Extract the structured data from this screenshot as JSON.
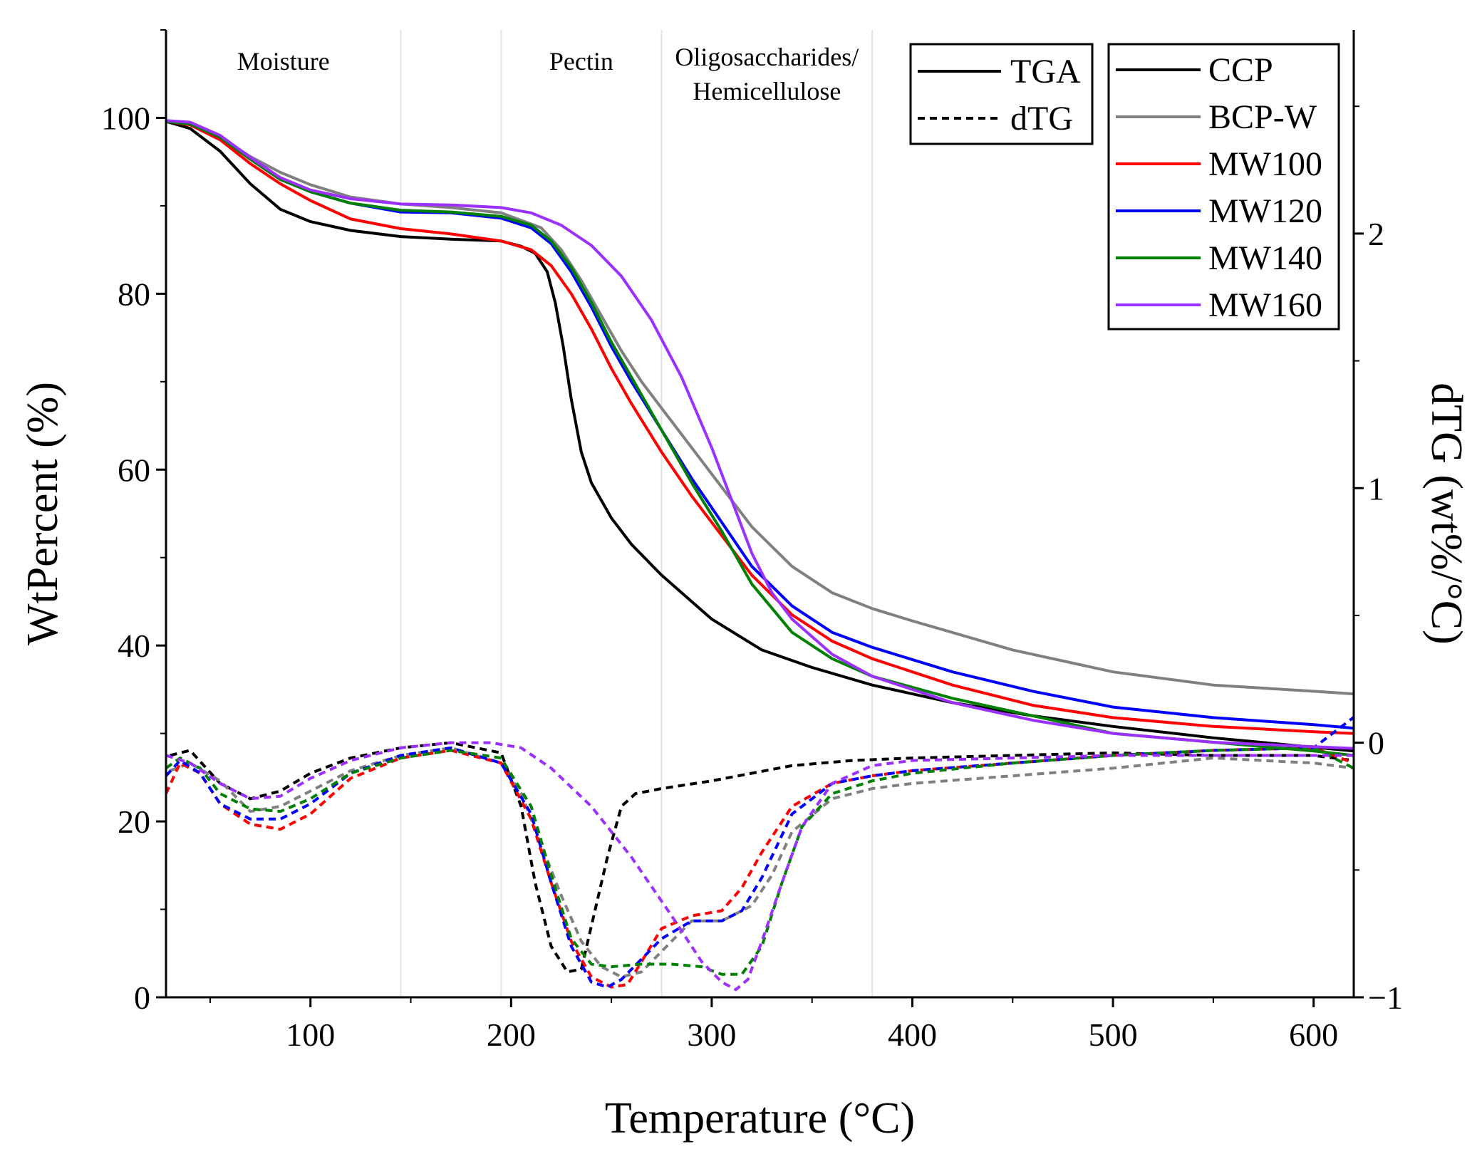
{
  "chart_data": {
    "type": "line",
    "xlabel": "Temperature (°C)",
    "ylabel": "WtPercent (%)",
    "y2label": "dTG (wt%/°C)",
    "xlim": [
      28,
      620
    ],
    "ylim": [
      0,
      110
    ],
    "y2lim": [
      -1,
      2.8
    ],
    "x_ticks": [
      100,
      200,
      300,
      400,
      500,
      600
    ],
    "y_ticks": [
      0,
      20,
      40,
      60,
      80,
      100
    ],
    "y2_ticks": [
      -1,
      0,
      1,
      2
    ],
    "x_tick_labels": [
      "100",
      "200",
      "300",
      "400",
      "500",
      "600"
    ],
    "y_tick_labels": [
      "0",
      "20",
      "40",
      "60",
      "80",
      "100"
    ],
    "y2_tick_labels": [
      "−1",
      "0",
      "1",
      "2"
    ],
    "regions": [
      {
        "label": "Moisture",
        "x_start": 28,
        "x_end": 145
      },
      {
        "label": "Pectin",
        "x_start": 195,
        "x_end": 275
      },
      {
        "label": "Oligosaccharides/",
        "label2": "Hemicellulose",
        "x_start": 275,
        "x_end": 380
      }
    ],
    "style_legend": [
      {
        "label": "TGA",
        "dash": "solid"
      },
      {
        "label": "dTG",
        "dash": "dashed"
      }
    ],
    "series": [
      {
        "name": "CCP",
        "color": "#000000",
        "tga": {
          "x": [
            28,
            40,
            55,
            70,
            85,
            100,
            120,
            145,
            170,
            195,
            205,
            212,
            218,
            222,
            226,
            230,
            235,
            240,
            250,
            260,
            275,
            300,
            325,
            350,
            380,
            420,
            460,
            500,
            550,
            620
          ],
          "y": [
            99.6,
            98.8,
            96.2,
            92.5,
            89.6,
            88.2,
            87.2,
            86.5,
            86.2,
            86.0,
            85.4,
            84.6,
            82.5,
            79.0,
            74.0,
            68.0,
            62.0,
            58.5,
            54.5,
            51.5,
            48.0,
            43.0,
            39.5,
            37.5,
            35.5,
            33.5,
            32.0,
            30.8,
            29.5,
            28.0
          ]
        },
        "dtg": {
          "x": [
            30,
            40,
            55,
            70,
            85,
            100,
            120,
            145,
            170,
            195,
            205,
            212,
            220,
            228,
            235,
            240,
            248,
            255,
            262,
            275,
            300,
            320,
            340,
            370,
            400,
            450,
            500,
            550,
            600,
            620
          ],
          "y": [
            -0.05,
            -0.03,
            -0.16,
            -0.22,
            -0.19,
            -0.12,
            -0.06,
            -0.02,
            0.0,
            -0.04,
            -0.25,
            -0.55,
            -0.8,
            -0.9,
            -0.89,
            -0.72,
            -0.45,
            -0.25,
            -0.2,
            -0.18,
            -0.15,
            -0.12,
            -0.09,
            -0.07,
            -0.06,
            -0.05,
            -0.04,
            -0.05,
            -0.05,
            -0.07
          ]
        }
      },
      {
        "name": "BCP-W",
        "color": "#808080",
        "tga": {
          "x": [
            28,
            40,
            55,
            70,
            85,
            100,
            120,
            145,
            170,
            195,
            215,
            225,
            235,
            245,
            255,
            265,
            275,
            290,
            305,
            320,
            340,
            360,
            380,
            400,
            450,
            500,
            550,
            600,
            620
          ],
          "y": [
            99.6,
            99.3,
            97.8,
            95.6,
            93.8,
            92.4,
            91.0,
            90.2,
            89.8,
            89.2,
            87.5,
            85.0,
            81.5,
            77.5,
            73.5,
            70.0,
            67.0,
            62.5,
            58.0,
            53.5,
            49.0,
            46.0,
            44.2,
            42.8,
            39.5,
            37.0,
            35.5,
            34.8,
            34.5
          ]
        },
        "dtg": {
          "x": [
            30,
            40,
            55,
            70,
            85,
            100,
            120,
            145,
            170,
            195,
            205,
            215,
            225,
            235,
            245,
            255,
            265,
            275,
            290,
            305,
            320,
            330,
            340,
            360,
            380,
            400,
            450,
            500,
            550,
            600,
            620
          ],
          "y": [
            -0.11,
            -0.08,
            -0.15,
            -0.27,
            -0.25,
            -0.19,
            -0.11,
            -0.05,
            -0.02,
            -0.08,
            -0.2,
            -0.4,
            -0.6,
            -0.78,
            -0.88,
            -0.92,
            -0.9,
            -0.82,
            -0.7,
            -0.7,
            -0.64,
            -0.52,
            -0.35,
            -0.22,
            -0.18,
            -0.16,
            -0.13,
            -0.1,
            -0.06,
            -0.08,
            -0.1
          ]
        }
      },
      {
        "name": "MW100",
        "color": "#ff0000",
        "tga": {
          "x": [
            28,
            40,
            55,
            70,
            85,
            100,
            120,
            145,
            170,
            195,
            210,
            220,
            230,
            240,
            250,
            260,
            275,
            290,
            305,
            320,
            340,
            360,
            380,
            420,
            460,
            500,
            550,
            600,
            620
          ],
          "y": [
            99.6,
            99.2,
            97.5,
            94.8,
            92.5,
            90.6,
            88.5,
            87.4,
            86.8,
            86.0,
            85.0,
            83.2,
            80.0,
            76.0,
            71.5,
            67.5,
            62.0,
            57.0,
            52.5,
            48.0,
            43.5,
            40.5,
            38.5,
            35.5,
            33.2,
            31.8,
            30.8,
            30.2,
            30.0
          ]
        },
        "dtg": {
          "x": [
            28,
            35,
            45,
            55,
            70,
            85,
            100,
            120,
            145,
            170,
            195,
            210,
            220,
            230,
            240,
            250,
            258,
            265,
            275,
            290,
            305,
            315,
            325,
            340,
            360,
            380,
            400,
            450,
            500,
            550,
            600,
            620
          ],
          "y": [
            -0.2,
            -0.08,
            -0.12,
            -0.24,
            -0.32,
            -0.34,
            -0.28,
            -0.14,
            -0.06,
            -0.03,
            -0.08,
            -0.3,
            -0.55,
            -0.78,
            -0.92,
            -0.96,
            -0.95,
            -0.86,
            -0.73,
            -0.68,
            -0.66,
            -0.57,
            -0.43,
            -0.25,
            -0.16,
            -0.13,
            -0.11,
            -0.08,
            -0.05,
            -0.03,
            -0.02,
            -0.08
          ]
        }
      },
      {
        "name": "MW120",
        "color": "#0000ff",
        "tga": {
          "x": [
            28,
            40,
            55,
            70,
            85,
            100,
            120,
            145,
            170,
            195,
            210,
            220,
            230,
            240,
            250,
            260,
            275,
            290,
            305,
            320,
            340,
            360,
            380,
            420,
            460,
            500,
            550,
            600,
            620
          ],
          "y": [
            99.6,
            99.3,
            97.8,
            95.3,
            93.0,
            91.6,
            90.3,
            89.3,
            89.2,
            88.6,
            87.5,
            85.7,
            82.5,
            78.5,
            74.0,
            70.0,
            64.5,
            59.0,
            54.0,
            49.0,
            44.5,
            41.5,
            39.8,
            37.0,
            34.8,
            33.0,
            31.8,
            31.0,
            30.6
          ]
        },
        "dtg": {
          "x": [
            28,
            35,
            45,
            55,
            70,
            85,
            100,
            120,
            145,
            170,
            195,
            210,
            220,
            230,
            240,
            248,
            255,
            265,
            275,
            290,
            305,
            315,
            325,
            340,
            360,
            380,
            400,
            450,
            500,
            550,
            600,
            620
          ],
          "y": [
            -0.13,
            -0.07,
            -0.12,
            -0.24,
            -0.3,
            -0.3,
            -0.24,
            -0.12,
            -0.05,
            -0.02,
            -0.08,
            -0.28,
            -0.55,
            -0.8,
            -0.94,
            -0.96,
            -0.93,
            -0.85,
            -0.77,
            -0.7,
            -0.7,
            -0.66,
            -0.53,
            -0.28,
            -0.16,
            -0.13,
            -0.11,
            -0.08,
            -0.05,
            -0.03,
            -0.02,
            0.1
          ]
        }
      },
      {
        "name": "MW140",
        "color": "#008000",
        "tga": {
          "x": [
            28,
            40,
            55,
            70,
            85,
            100,
            120,
            145,
            170,
            195,
            210,
            220,
            230,
            240,
            250,
            260,
            275,
            290,
            305,
            320,
            340,
            360,
            380,
            420,
            460,
            500,
            550,
            600,
            620
          ],
          "y": [
            99.6,
            99.3,
            97.8,
            95.3,
            93.0,
            91.6,
            90.3,
            89.5,
            89.3,
            88.8,
            87.8,
            86.0,
            83.0,
            79.0,
            74.5,
            70.5,
            64.5,
            58.5,
            53.0,
            47.0,
            41.5,
            38.5,
            36.5,
            34.0,
            32.0,
            30.0,
            29.0,
            28.0,
            27.5
          ]
        },
        "dtg": {
          "x": [
            28,
            35,
            45,
            55,
            70,
            85,
            100,
            120,
            145,
            170,
            195,
            210,
            220,
            230,
            240,
            250,
            265,
            280,
            295,
            305,
            315,
            325,
            335,
            345,
            360,
            380,
            400,
            450,
            500,
            550,
            600,
            620
          ],
          "y": [
            -0.1,
            -0.06,
            -0.1,
            -0.2,
            -0.26,
            -0.27,
            -0.22,
            -0.12,
            -0.06,
            -0.03,
            -0.06,
            -0.25,
            -0.52,
            -0.77,
            -0.87,
            -0.88,
            -0.87,
            -0.87,
            -0.88,
            -0.91,
            -0.91,
            -0.8,
            -0.55,
            -0.33,
            -0.2,
            -0.15,
            -0.12,
            -0.08,
            -0.05,
            -0.03,
            -0.02,
            -0.1
          ]
        }
      },
      {
        "name": "MW160",
        "color": "#9b30ff",
        "tga": {
          "x": [
            28,
            40,
            55,
            70,
            85,
            100,
            120,
            145,
            170,
            195,
            210,
            225,
            240,
            255,
            270,
            285,
            300,
            310,
            320,
            330,
            340,
            360,
            380,
            420,
            460,
            500,
            550,
            600,
            620
          ],
          "y": [
            99.7,
            99.5,
            98.0,
            95.5,
            93.2,
            91.8,
            90.8,
            90.2,
            90.1,
            89.8,
            89.2,
            87.8,
            85.5,
            82.0,
            77.0,
            70.5,
            62.5,
            56.5,
            50.5,
            46.0,
            43.0,
            39.0,
            36.5,
            33.5,
            31.5,
            30.0,
            29.0,
            28.5,
            28.3
          ]
        },
        "dtg": {
          "x": [
            28,
            40,
            55,
            70,
            85,
            100,
            120,
            145,
            170,
            190,
            205,
            220,
            240,
            260,
            280,
            295,
            305,
            312,
            318,
            325,
            335,
            345,
            360,
            380,
            400,
            450,
            500,
            550,
            600,
            620
          ],
          "y": [
            -0.05,
            -0.08,
            -0.16,
            -0.22,
            -0.21,
            -0.14,
            -0.07,
            -0.02,
            0.0,
            0.0,
            -0.02,
            -0.1,
            -0.25,
            -0.45,
            -0.68,
            -0.86,
            -0.94,
            -0.97,
            -0.93,
            -0.78,
            -0.55,
            -0.33,
            -0.16,
            -0.09,
            -0.07,
            -0.06,
            -0.05,
            -0.05,
            -0.05,
            -0.05
          ]
        }
      }
    ]
  }
}
